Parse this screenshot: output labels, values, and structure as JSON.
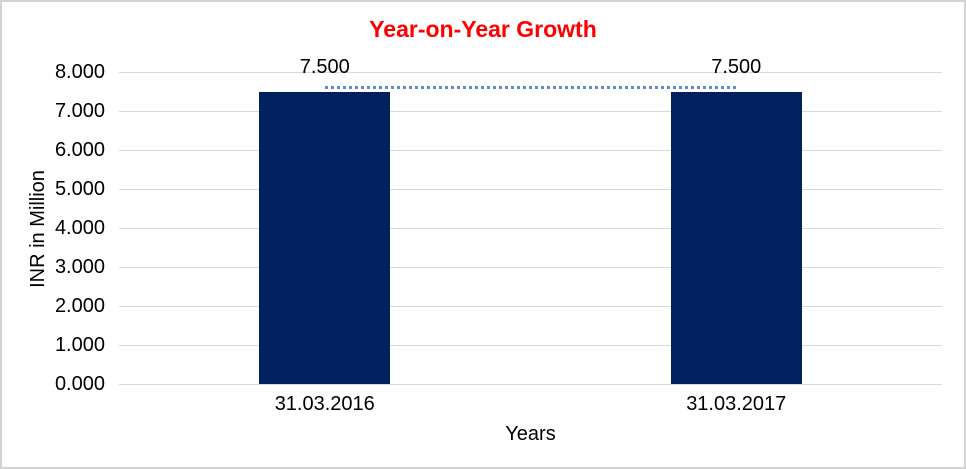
{
  "chart_data": {
    "type": "bar",
    "title": "Year-on-Year Growth",
    "xlabel": "Years",
    "ylabel": "INR in Million",
    "categories": [
      "31.03.2016",
      "31.03.2017"
    ],
    "values": [
      7500,
      7500
    ],
    "value_labels": [
      "7.500",
      "7.500"
    ],
    "y_ticks": [
      "8.000",
      "7.000",
      "6.000",
      "5.000",
      "4.000",
      "3.000",
      "2.000",
      "1.000",
      "0.000"
    ],
    "y_tick_values": [
      8000,
      7000,
      6000,
      5000,
      4000,
      3000,
      2000,
      1000,
      0
    ],
    "ylim": [
      0,
      8000
    ],
    "grid": "horizontal-only",
    "legend": "none",
    "connector_line": {
      "style": "dotted",
      "from": 7500,
      "to": 7500
    },
    "colors": {
      "title": "#FF0000",
      "bar": "#002060",
      "connector": "#5B8FC9",
      "gridline": "#D9D9D9",
      "text": "#000000",
      "frame_border": "#D3D3D3",
      "background": "#FFFFFF"
    }
  }
}
